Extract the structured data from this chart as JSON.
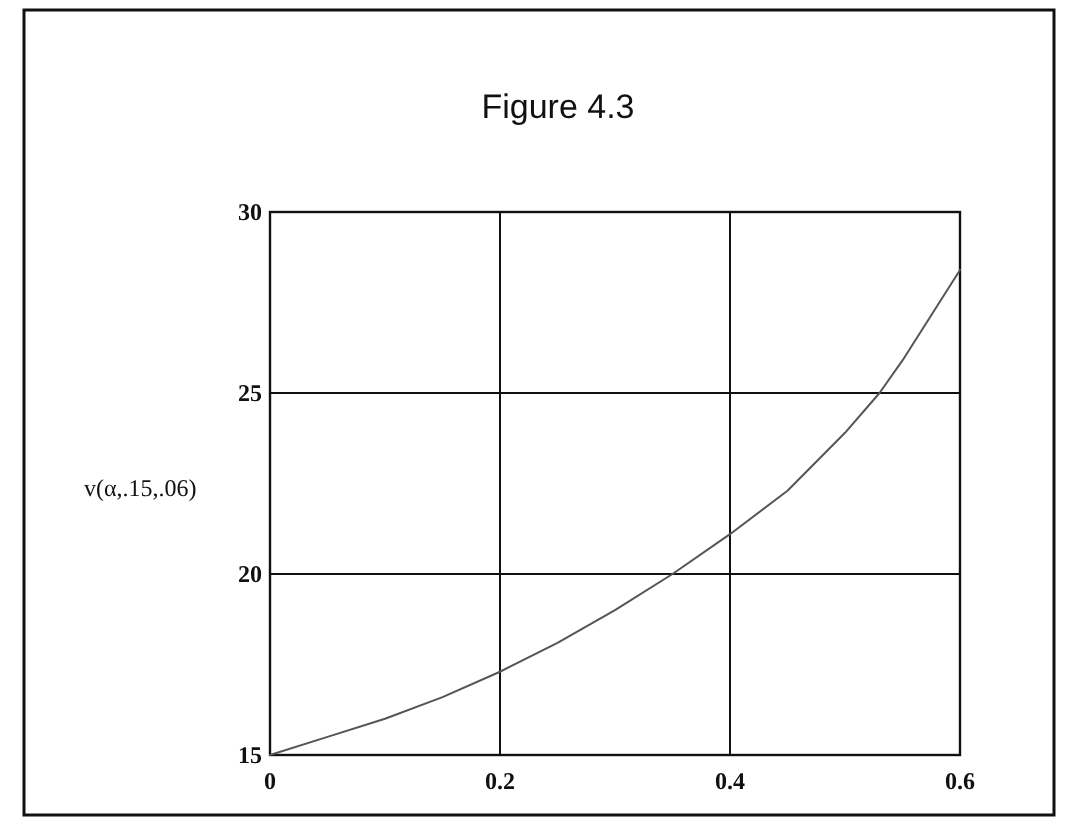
{
  "chart_data": {
    "type": "line",
    "title": "Figure 4.3",
    "ylabel": "v(α,.15,.06)",
    "x": [
      0,
      0.05,
      0.1,
      0.15,
      0.2,
      0.25,
      0.3,
      0.35,
      0.4,
      0.45,
      0.5,
      0.53,
      0.55,
      0.6
    ],
    "series": [
      {
        "color": "#555555",
        "values": [
          15,
          15.5,
          16.0,
          16.6,
          17.3,
          18.1,
          19.0,
          20.0,
          21.1,
          22.3,
          23.9,
          25.0,
          25.9,
          28.4
        ]
      }
    ],
    "xlim": [
      0,
      0.6
    ],
    "xticks": [
      0,
      0.2,
      0.4,
      0.6
    ],
    "ylim": [
      15,
      30
    ],
    "yticks": [
      15,
      20,
      25,
      30
    ],
    "grid": true,
    "line_style": "solid",
    "marker": "none"
  }
}
